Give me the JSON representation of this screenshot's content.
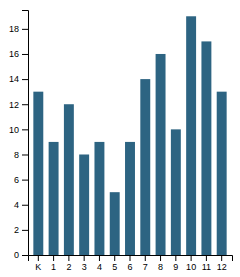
{
  "chart_data": {
    "type": "bar",
    "categories": [
      "K",
      "1",
      "2",
      "3",
      "4",
      "5",
      "6",
      "7",
      "8",
      "9",
      "10",
      "11",
      "12"
    ],
    "values": [
      13,
      9,
      12,
      8,
      9,
      5,
      9,
      14,
      16,
      10,
      19,
      17,
      13
    ],
    "color": "#2d6482",
    "ylim": [
      0,
      19.5
    ],
    "yticks": [
      0,
      2,
      4,
      6,
      8,
      10,
      12,
      14,
      16,
      18
    ],
    "grid": false
  }
}
